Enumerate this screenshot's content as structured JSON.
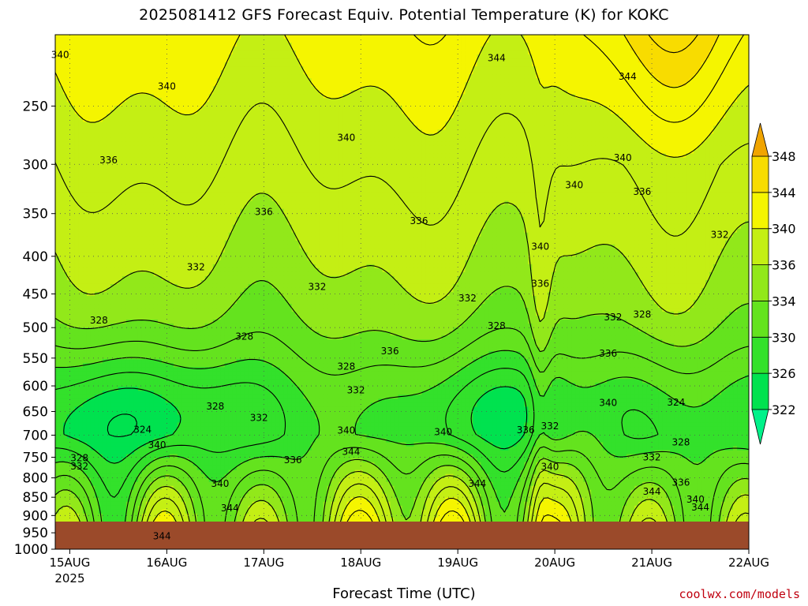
{
  "title": "2025081412 GFS Forecast Equiv. Potential Temperature (K) for KOKC",
  "xlabel": "Forecast Time (UTC)",
  "credit": "coolwx.com/models",
  "colors": {
    "ground": "#9b4a2a",
    "bins": [
      "#00f28a",
      "#00e24f",
      "#33e12b",
      "#64e31e",
      "#92e81a",
      "#c4ef14",
      "#f5f500",
      "#f8dc00",
      "#f4c000",
      "#f0a400"
    ]
  },
  "chart_data": {
    "type": "heatmap",
    "title": "2025081412 GFS Forecast Equiv. Potential Temperature (K) for KOKC",
    "xlabel": "Forecast Time (UTC)",
    "ylabel": "",
    "x_ticks": [
      "15AUG",
      "16AUG",
      "17AUG",
      "18AUG",
      "19AUG",
      "20AUG",
      "21AUG",
      "22AUG"
    ],
    "x_year_label": "2025",
    "y_ticks": [
      250,
      300,
      350,
      400,
      450,
      500,
      550,
      600,
      650,
      700,
      750,
      800,
      850,
      900,
      950,
      1000
    ],
    "y_axis": "pressure (hPa), log scale, inverted",
    "ylim": [
      200,
      1000
    ],
    "xlim_days_from_15AUG": [
      -0.15,
      7.0
    ],
    "colorbar_levels": [
      322,
      326,
      330,
      334,
      336,
      340,
      344,
      348
    ],
    "grid": true,
    "colorbar_position": "right",
    "contour_labels": [
      {
        "text": "340",
        "t": -0.1,
        "p": 213
      },
      {
        "text": "340",
        "t": 1.0,
        "p": 235
      },
      {
        "text": "344",
        "t": 4.4,
        "p": 215
      },
      {
        "text": "344",
        "t": 5.75,
        "p": 228
      },
      {
        "text": "336",
        "t": 0.4,
        "p": 296
      },
      {
        "text": "340",
        "t": 2.85,
        "p": 276
      },
      {
        "text": "340",
        "t": 5.7,
        "p": 294
      },
      {
        "text": "340",
        "t": 5.2,
        "p": 320
      },
      {
        "text": "336",
        "t": 5.9,
        "p": 327
      },
      {
        "text": "336",
        "t": 2.0,
        "p": 348
      },
      {
        "text": "336",
        "t": 3.6,
        "p": 358
      },
      {
        "text": "332",
        "t": 6.7,
        "p": 374
      },
      {
        "text": "340",
        "t": 4.85,
        "p": 388
      },
      {
        "text": "332",
        "t": 1.3,
        "p": 414
      },
      {
        "text": "332",
        "t": 2.55,
        "p": 440
      },
      {
        "text": "332",
        "t": 4.1,
        "p": 456
      },
      {
        "text": "336",
        "t": 4.85,
        "p": 436
      },
      {
        "text": "328",
        "t": 0.3,
        "p": 489
      },
      {
        "text": "328",
        "t": 1.8,
        "p": 514
      },
      {
        "text": "332",
        "t": 5.6,
        "p": 484
      },
      {
        "text": "328",
        "t": 5.9,
        "p": 480
      },
      {
        "text": "328",
        "t": 4.4,
        "p": 497
      },
      {
        "text": "336",
        "t": 3.3,
        "p": 538
      },
      {
        "text": "328",
        "t": 2.85,
        "p": 565
      },
      {
        "text": "336",
        "t": 5.55,
        "p": 542
      },
      {
        "text": "332",
        "t": 2.95,
        "p": 608
      },
      {
        "text": "328",
        "t": 1.5,
        "p": 640
      },
      {
        "text": "340",
        "t": 5.55,
        "p": 633
      },
      {
        "text": "324",
        "t": 6.25,
        "p": 632
      },
      {
        "text": "332",
        "t": 1.95,
        "p": 663
      },
      {
        "text": "324",
        "t": 0.75,
        "p": 688
      },
      {
        "text": "340",
        "t": 2.85,
        "p": 690
      },
      {
        "text": "340",
        "t": 3.85,
        "p": 693
      },
      {
        "text": "336",
        "t": 4.7,
        "p": 689
      },
      {
        "text": "332",
        "t": 4.95,
        "p": 680
      },
      {
        "text": "340",
        "t": 0.9,
        "p": 722
      },
      {
        "text": "344",
        "t": 2.9,
        "p": 737
      },
      {
        "text": "328",
        "t": 6.3,
        "p": 716
      },
      {
        "text": "328",
        "t": 0.1,
        "p": 752
      },
      {
        "text": "332",
        "t": 0.1,
        "p": 772
      },
      {
        "text": "336",
        "t": 2.3,
        "p": 757
      },
      {
        "text": "332",
        "t": 6.0,
        "p": 750
      },
      {
        "text": "340",
        "t": 4.95,
        "p": 773
      },
      {
        "text": "340",
        "t": 1.55,
        "p": 815
      },
      {
        "text": "344",
        "t": 4.2,
        "p": 815
      },
      {
        "text": "336",
        "t": 6.3,
        "p": 812
      },
      {
        "text": "344",
        "t": 6.0,
        "p": 835
      },
      {
        "text": "340",
        "t": 6.45,
        "p": 856
      },
      {
        "text": "344",
        "t": 1.65,
        "p": 880
      },
      {
        "text": "344",
        "t": 6.5,
        "p": 877
      },
      {
        "text": "344",
        "t": 0.95,
        "p": 960
      }
    ]
  }
}
